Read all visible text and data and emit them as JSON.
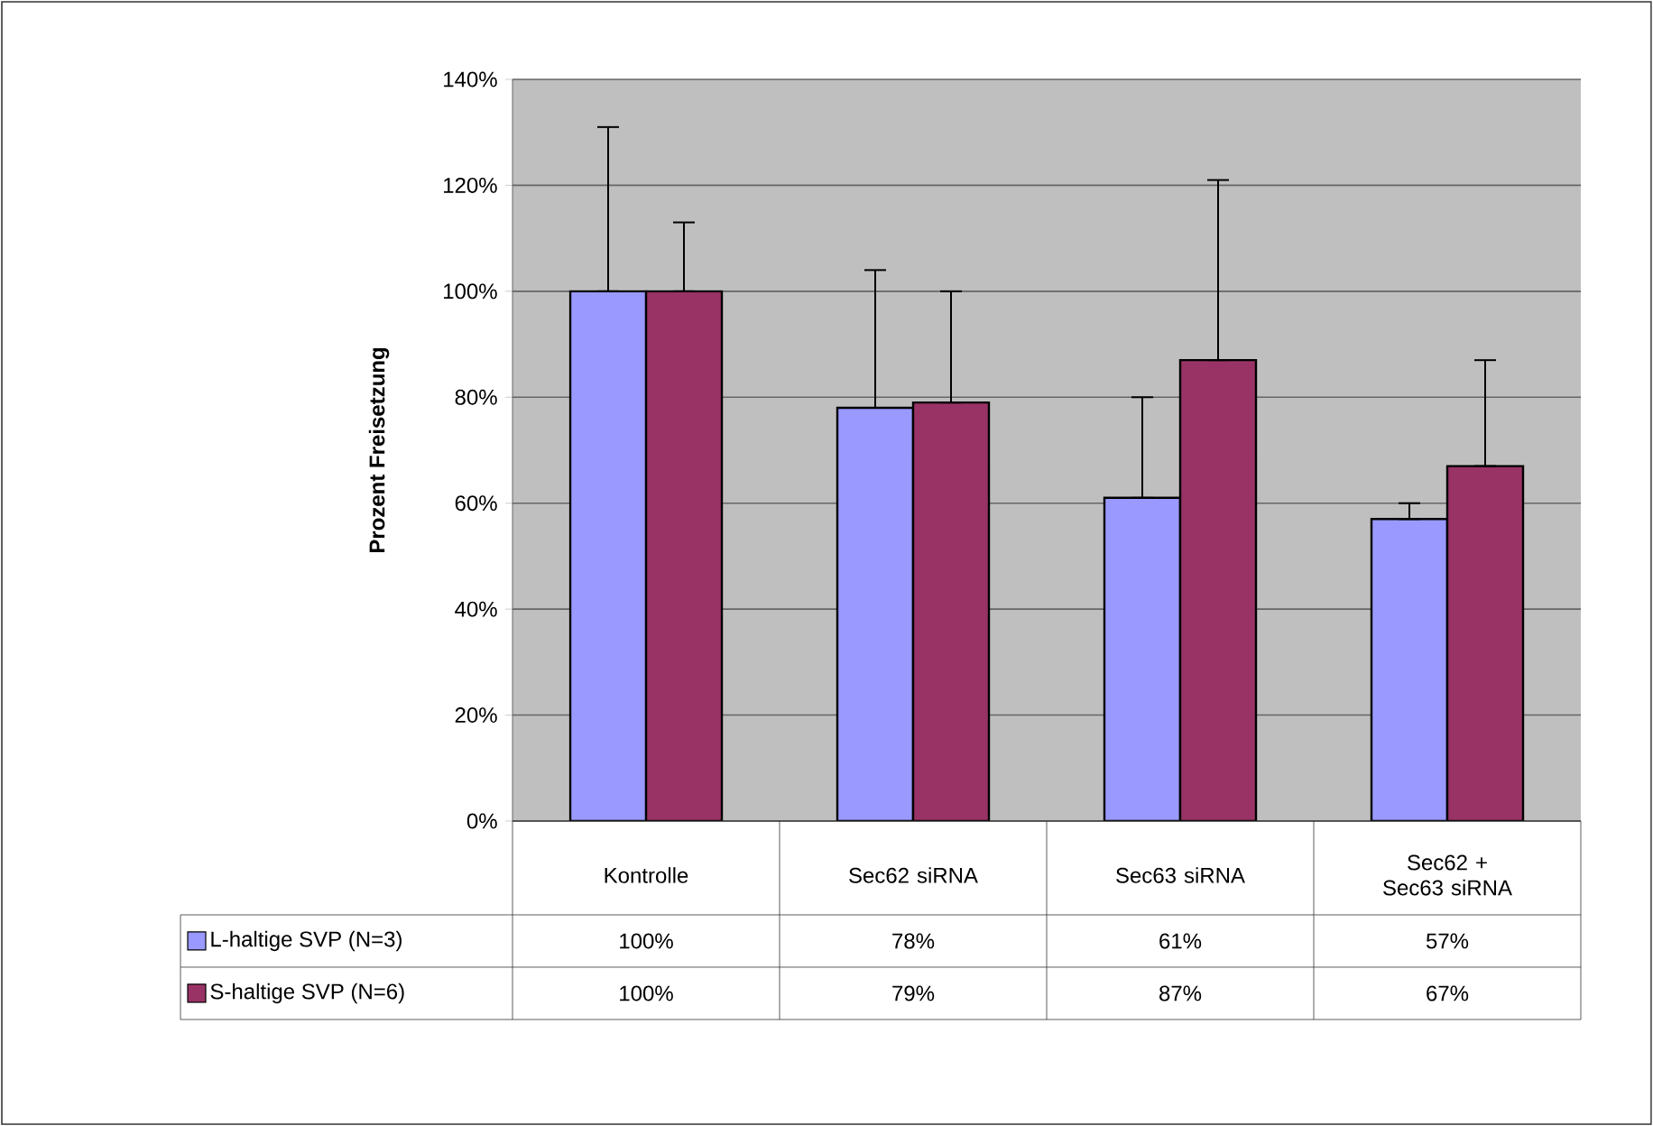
{
  "chart_data": {
    "type": "bar",
    "ylabel": "Prozent Freisetzung",
    "categories": [
      "Kontrolle",
      "Sec62 siRNA",
      "Sec63 siRNA",
      "Sec62 + Sec63 siRNA"
    ],
    "ylim": [
      0,
      140
    ],
    "yticks": [
      {
        "value": 0,
        "label": "0%"
      },
      {
        "value": 20,
        "label": "20%"
      },
      {
        "value": 40,
        "label": "40%"
      },
      {
        "value": 60,
        "label": "60%"
      },
      {
        "value": 80,
        "label": "80%"
      },
      {
        "value": 100,
        "label": "100%"
      },
      {
        "value": 120,
        "label": "120%"
      },
      {
        "value": 140,
        "label": "140%"
      }
    ],
    "grid": "y",
    "legend": "bottom",
    "series": [
      {
        "name": "L-haltige SVP (N=3)",
        "color": "#9999ff",
        "values": [
          100,
          78,
          61,
          57
        ],
        "errors": [
          [
            100,
            131
          ],
          [
            78,
            104
          ],
          [
            61,
            80
          ],
          [
            57,
            60
          ]
        ],
        "value_labels": [
          "100%",
          "78%",
          "61%",
          "57%"
        ]
      },
      {
        "name": "S-haltige SVP (N=6)",
        "color": "#993366",
        "values": [
          100,
          79,
          87,
          67
        ],
        "errors": [
          [
            100,
            113
          ],
          [
            79,
            100
          ],
          [
            87,
            121
          ],
          [
            67,
            87
          ]
        ],
        "value_labels": [
          "100%",
          "79%",
          "87%",
          "67%"
        ]
      }
    ]
  }
}
